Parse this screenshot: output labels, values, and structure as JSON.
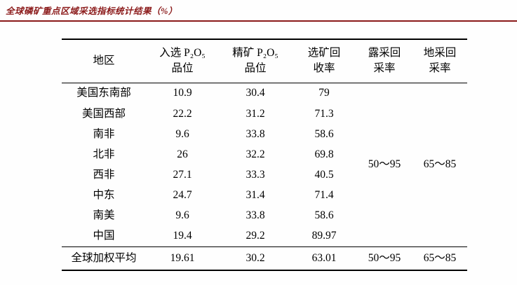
{
  "title": "全球磷矿重点区域采选指标统计结果（%）",
  "accent_color": "#8b1a1a",
  "table": {
    "headers": {
      "region": "地区",
      "feed_line1": "入选 P₂O₅",
      "feed_line2": "品位",
      "conc_line1": "精矿 P₂O₅",
      "conc_line2": "品位",
      "recov_line1": "选矿回",
      "recov_line2": "收率",
      "open_line1": "露采回",
      "open_line2": "采率",
      "under_line1": "地采回",
      "under_line2": "采率"
    },
    "rows": [
      {
        "region": "美国东南部",
        "feed": "10.9",
        "conc": "30.4",
        "recov": "79"
      },
      {
        "region": "美国西部",
        "feed": "22.2",
        "conc": "31.2",
        "recov": "71.3"
      },
      {
        "region": "南非",
        "feed": "9.6",
        "conc": "33.8",
        "recov": "58.6"
      },
      {
        "region": "北非",
        "feed": "26",
        "conc": "32.2",
        "recov": "69.8"
      },
      {
        "region": "西非",
        "feed": "27.1",
        "conc": "33.3",
        "recov": "40.5"
      },
      {
        "region": "中东",
        "feed": "24.7",
        "conc": "31.4",
        "recov": "71.4"
      },
      {
        "region": "南美",
        "feed": "9.6",
        "conc": "33.8",
        "recov": "58.6"
      },
      {
        "region": "中国",
        "feed": "19.4",
        "conc": "29.2",
        "recov": "89.97"
      }
    ],
    "merged": {
      "open_pit": "50～95",
      "underground": "65～85"
    },
    "footer": {
      "region": "全球加权平均",
      "feed": "19.61",
      "conc": "30.2",
      "recov": "63.01",
      "open_pit": "50～95",
      "underground": "65～85"
    }
  }
}
